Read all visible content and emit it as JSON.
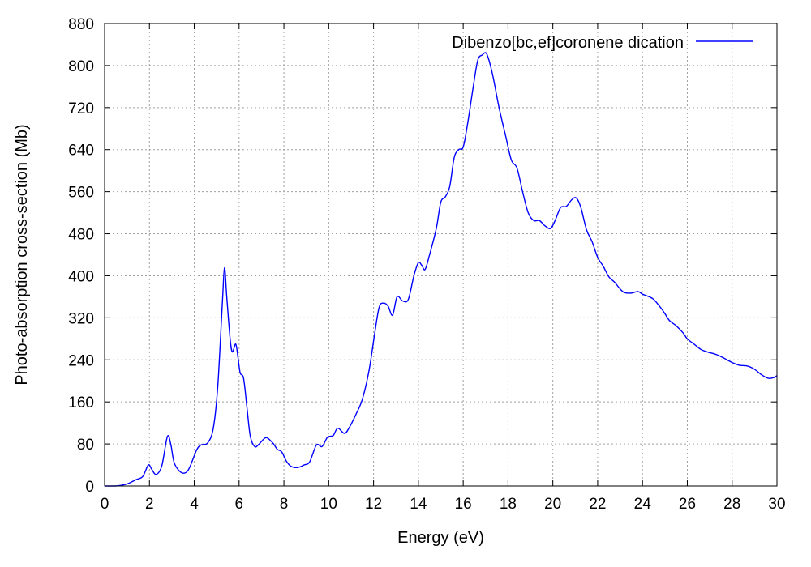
{
  "chart_data": {
    "type": "line",
    "title": "",
    "xlabel": "Energy (eV)",
    "ylabel": "Photo-absorption cross-section (Mb)",
    "xlim": [
      0,
      30
    ],
    "ylim": [
      0,
      880
    ],
    "xticks": [
      0,
      2,
      4,
      6,
      8,
      10,
      12,
      14,
      16,
      18,
      20,
      22,
      24,
      26,
      28,
      30
    ],
    "yticks": [
      0,
      80,
      160,
      240,
      320,
      400,
      480,
      560,
      640,
      720,
      800,
      880
    ],
    "grid": true,
    "legend_position": "top-right",
    "series": [
      {
        "name": "Dibenzo[bc,ef]coronene dication",
        "color": "#0000ff",
        "points": [
          [
            0.0,
            0
          ],
          [
            0.5,
            0
          ],
          [
            1.0,
            4
          ],
          [
            1.4,
            12
          ],
          [
            1.7,
            18
          ],
          [
            1.95,
            40
          ],
          [
            2.1,
            32
          ],
          [
            2.3,
            22
          ],
          [
            2.55,
            38
          ],
          [
            2.8,
            94
          ],
          [
            2.95,
            80
          ],
          [
            3.1,
            45
          ],
          [
            3.35,
            28
          ],
          [
            3.6,
            25
          ],
          [
            3.8,
            36
          ],
          [
            4.1,
            68
          ],
          [
            4.3,
            78
          ],
          [
            4.6,
            82
          ],
          [
            4.85,
            110
          ],
          [
            5.05,
            190
          ],
          [
            5.25,
            345
          ],
          [
            5.35,
            415
          ],
          [
            5.45,
            360
          ],
          [
            5.6,
            280
          ],
          [
            5.7,
            255
          ],
          [
            5.85,
            270
          ],
          [
            5.95,
            245
          ],
          [
            6.05,
            215
          ],
          [
            6.2,
            205
          ],
          [
            6.35,
            150
          ],
          [
            6.5,
            95
          ],
          [
            6.7,
            75
          ],
          [
            6.9,
            80
          ],
          [
            7.2,
            92
          ],
          [
            7.5,
            82
          ],
          [
            7.7,
            70
          ],
          [
            7.9,
            65
          ],
          [
            8.1,
            48
          ],
          [
            8.3,
            38
          ],
          [
            8.6,
            35
          ],
          [
            8.9,
            40
          ],
          [
            9.15,
            46
          ],
          [
            9.45,
            78
          ],
          [
            9.7,
            75
          ],
          [
            9.95,
            93
          ],
          [
            10.2,
            96
          ],
          [
            10.4,
            110
          ],
          [
            10.7,
            100
          ],
          [
            10.9,
            110
          ],
          [
            11.2,
            135
          ],
          [
            11.5,
            165
          ],
          [
            11.8,
            220
          ],
          [
            12.05,
            290
          ],
          [
            12.25,
            340
          ],
          [
            12.45,
            348
          ],
          [
            12.65,
            342
          ],
          [
            12.85,
            325
          ],
          [
            13.05,
            360
          ],
          [
            13.3,
            352
          ],
          [
            13.55,
            355
          ],
          [
            13.8,
            400
          ],
          [
            14.0,
            425
          ],
          [
            14.15,
            420
          ],
          [
            14.3,
            412
          ],
          [
            14.5,
            440
          ],
          [
            14.8,
            490
          ],
          [
            15.0,
            540
          ],
          [
            15.2,
            550
          ],
          [
            15.4,
            570
          ],
          [
            15.6,
            625
          ],
          [
            15.8,
            640
          ],
          [
            16.0,
            645
          ],
          [
            16.2,
            690
          ],
          [
            16.45,
            760
          ],
          [
            16.65,
            810
          ],
          [
            16.85,
            820
          ],
          [
            17.05,
            822
          ],
          [
            17.3,
            785
          ],
          [
            17.6,
            720
          ],
          [
            17.9,
            665
          ],
          [
            18.15,
            620
          ],
          [
            18.4,
            605
          ],
          [
            18.65,
            560
          ],
          [
            18.9,
            520
          ],
          [
            19.15,
            505
          ],
          [
            19.4,
            505
          ],
          [
            19.65,
            495
          ],
          [
            19.9,
            490
          ],
          [
            20.1,
            505
          ],
          [
            20.35,
            530
          ],
          [
            20.6,
            532
          ],
          [
            20.85,
            545
          ],
          [
            21.05,
            548
          ],
          [
            21.25,
            530
          ],
          [
            21.5,
            488
          ],
          [
            21.75,
            465
          ],
          [
            22.0,
            435
          ],
          [
            22.25,
            418
          ],
          [
            22.5,
            398
          ],
          [
            22.75,
            388
          ],
          [
            23.0,
            375
          ],
          [
            23.2,
            368
          ],
          [
            23.5,
            367
          ],
          [
            23.8,
            370
          ],
          [
            24.0,
            365
          ],
          [
            24.3,
            360
          ],
          [
            24.5,
            355
          ],
          [
            24.8,
            340
          ],
          [
            25.0,
            328
          ],
          [
            25.2,
            315
          ],
          [
            25.5,
            305
          ],
          [
            25.8,
            292
          ],
          [
            26.0,
            280
          ],
          [
            26.3,
            270
          ],
          [
            26.6,
            260
          ],
          [
            26.9,
            255
          ],
          [
            27.3,
            250
          ],
          [
            27.6,
            244
          ],
          [
            28.0,
            235
          ],
          [
            28.3,
            230
          ],
          [
            28.7,
            228
          ],
          [
            29.0,
            222
          ],
          [
            29.3,
            212
          ],
          [
            29.6,
            205
          ],
          [
            29.85,
            206
          ],
          [
            30.0,
            210
          ]
        ]
      }
    ]
  }
}
